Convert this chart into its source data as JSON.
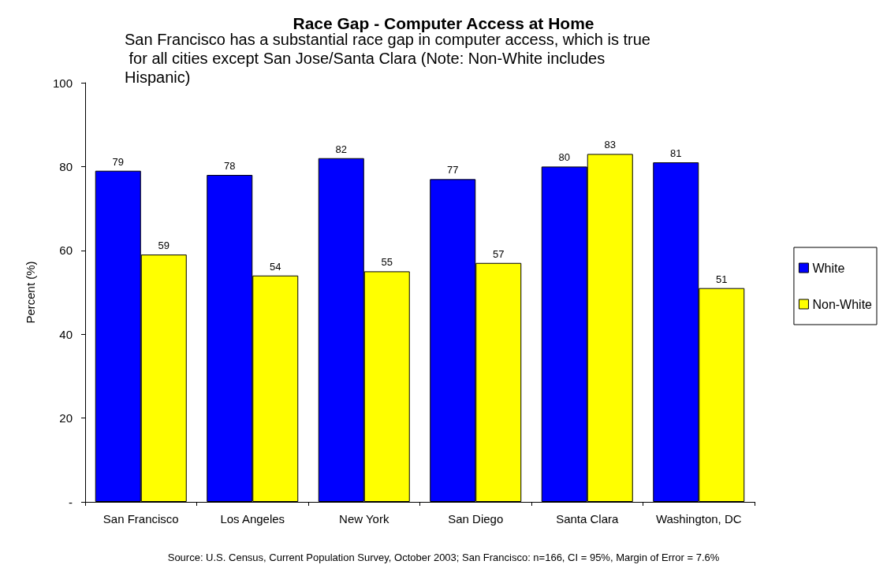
{
  "chart_data": {
    "type": "bar",
    "title": "Race Gap - Computer Access at Home",
    "subtitle": "San Francisco has a substantial race gap in computer access, which is true for all cities except San Jose/Santa Clara (Note: Non-White includes Hispanic)",
    "ylabel": "Percent (%)",
    "categories": [
      "San Francisco",
      "Los Angeles",
      "New York",
      "San Diego",
      "Santa Clara",
      "Washington, DC"
    ],
    "series": [
      {
        "name": "White",
        "color": "#0000ff",
        "values": [
          79,
          78,
          82,
          77,
          80,
          81
        ]
      },
      {
        "name": "Non-White",
        "color": "#ffff00",
        "values": [
          59,
          54,
          55,
          57,
          83,
          51
        ]
      }
    ],
    "ylim": [
      0,
      100
    ],
    "yticks": [
      {
        "value": 0,
        "label": "-"
      },
      20,
      40,
      60,
      80,
      100
    ],
    "grid": false,
    "legend": "right",
    "data_labels": true,
    "annotations": [
      "Source: U.S. Census, Current Population Survey, October 2003; San Francisco: n=166, CI = 95%, Margin of Error = 7.6%"
    ]
  }
}
